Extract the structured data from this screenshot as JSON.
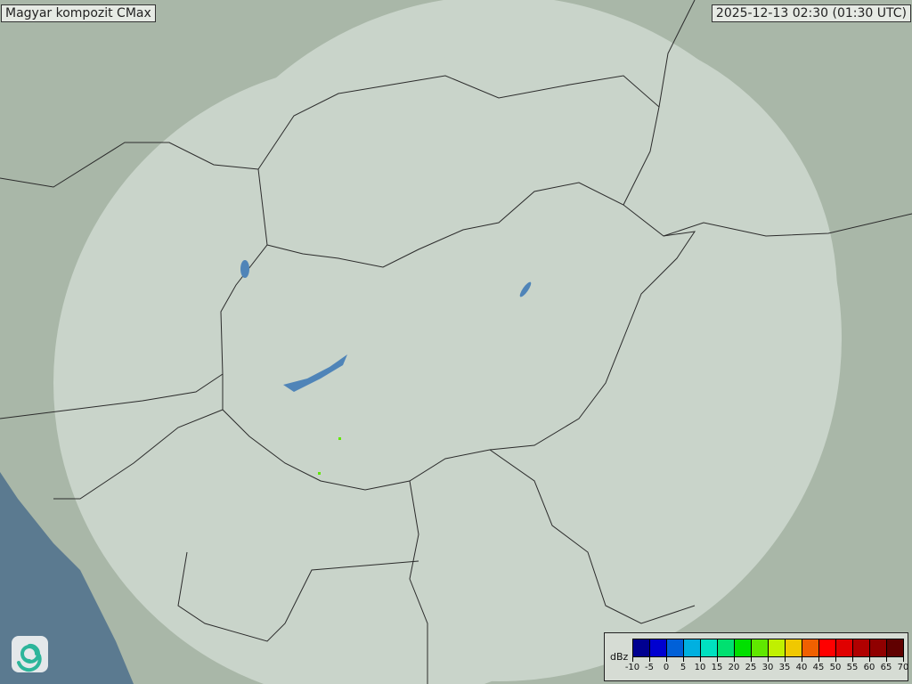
{
  "title": "Magyar kompozit  CMax",
  "timestamp": "2025-12-13 02:30 (01:30 UTC)",
  "legend": {
    "unit": "dBz",
    "ticks": [
      "-10",
      "-5",
      "0",
      "5",
      "10",
      "15",
      "20",
      "25",
      "30",
      "35",
      "40",
      "45",
      "50",
      "55",
      "60",
      "65",
      "70"
    ],
    "colors": [
      "#000090",
      "#0000d0",
      "#0060d8",
      "#00b0e0",
      "#00e0c0",
      "#00e070",
      "#00e000",
      "#60e800",
      "#c0f000",
      "#f0c800",
      "#f06000",
      "#ff0000",
      "#e00000",
      "#b00000",
      "#900000",
      "#600000"
    ]
  },
  "map_colors": {
    "land": "#a9b7a8",
    "radar_coverage": "#d8e2dc",
    "sea": "#5b7a90",
    "lake": "#4f84b8",
    "border": "#2b2b2b"
  },
  "logo": "swirl-logo"
}
